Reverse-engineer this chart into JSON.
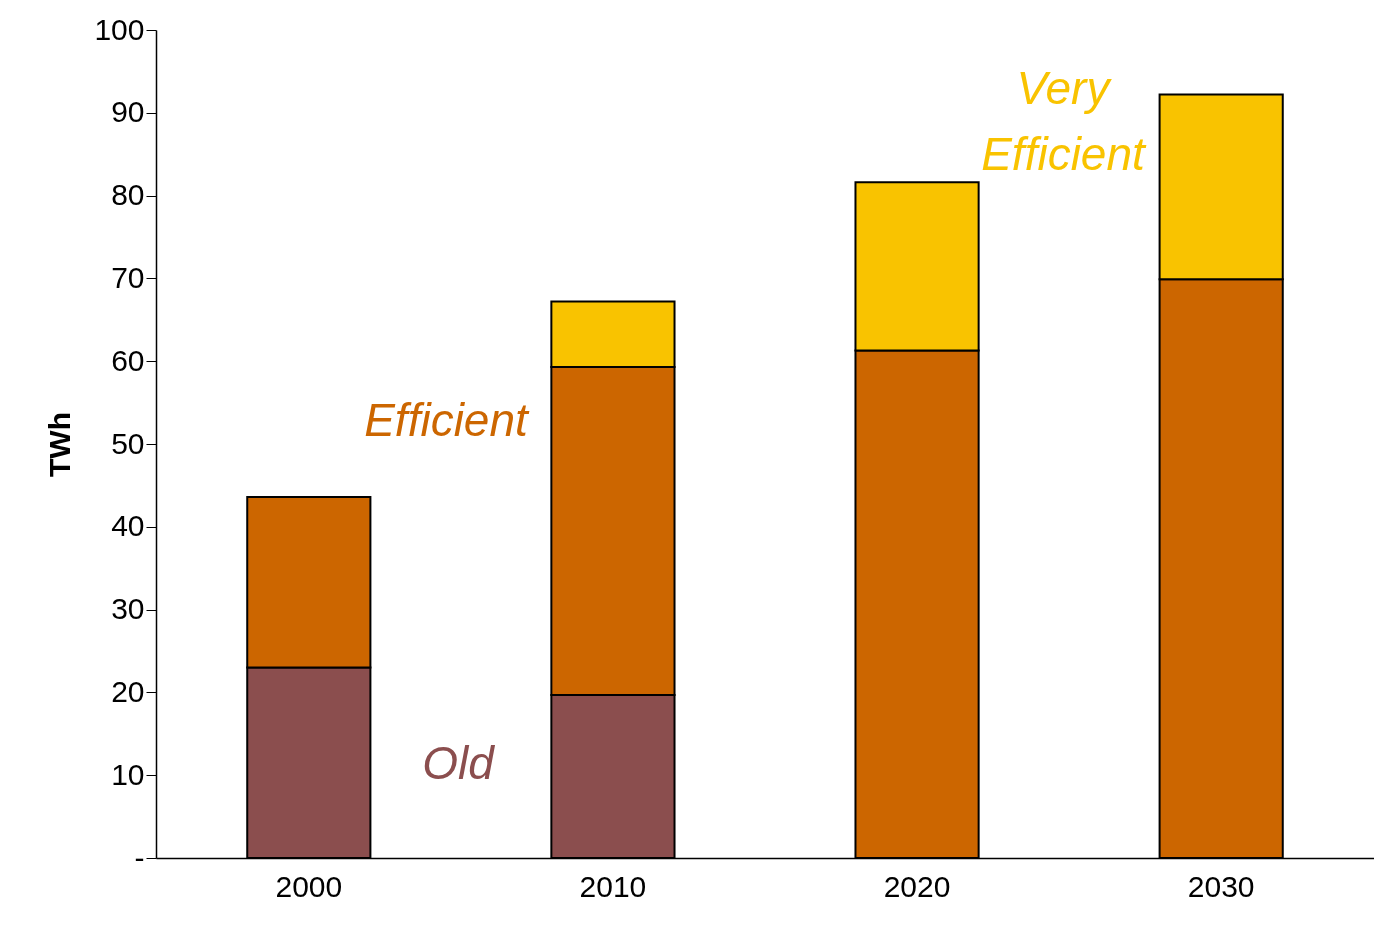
{
  "chart_data": {
    "type": "bar",
    "stacked": true,
    "ylabel": "TWh",
    "categories": [
      "2000",
      "2010",
      "2020",
      "2030"
    ],
    "series": [
      {
        "name": "Old",
        "color": "#8b4e4e",
        "values": [
          23,
          19.7,
          null,
          null
        ]
      },
      {
        "name": "Efficient",
        "color": "#cc6600",
        "values": [
          20.6,
          39.6,
          61.3,
          69.9
        ]
      },
      {
        "name": "Very Efficient",
        "color": "#f9c300",
        "values": [
          null,
          7.9,
          20.3,
          22.3
        ]
      }
    ],
    "ylim": [
      0,
      100
    ],
    "yticks": [
      {
        "value": 0,
        "label": "-"
      },
      10,
      20,
      30,
      40,
      50,
      60,
      70,
      80,
      90,
      100
    ],
    "grid": false
  }
}
